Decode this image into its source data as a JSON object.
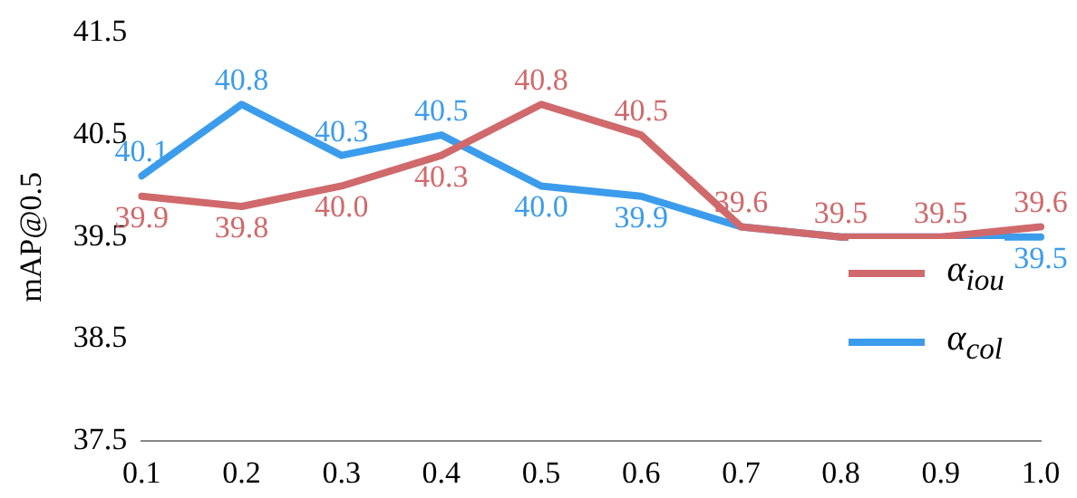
{
  "chart_data": {
    "type": "line",
    "ylabel": "mAP@0.5",
    "categories": [
      "0.1",
      "0.2",
      "0.3",
      "0.4",
      "0.5",
      "0.6",
      "0.7",
      "0.8",
      "0.9",
      "1.0"
    ],
    "ylim": [
      37.5,
      41.5
    ],
    "yticks": [
      37.5,
      38.5,
      39.5,
      40.5,
      41.5
    ],
    "grid": false,
    "legend": "right",
    "marker": "none",
    "line_style": "solid",
    "series": [
      {
        "name": "α$_{iou}$",
        "color": "#d0696b",
        "values": [
          39.9,
          39.8,
          40.0,
          40.3,
          40.8,
          40.5,
          39.6,
          39.5,
          39.5,
          39.6
        ],
        "value_labels": [
          "39.9",
          "39.8",
          "40.0",
          "40.3",
          "40.8",
          "40.5",
          "39.6",
          "39.5",
          "39.5",
          "39.6"
        ]
      },
      {
        "name": "α$_{col}$",
        "color": "#3c9cec",
        "values": [
          40.1,
          40.8,
          40.3,
          40.5,
          40.0,
          39.9,
          39.6,
          39.5,
          39.5,
          39.5
        ],
        "value_labels": [
          "40.1",
          "40.8",
          "40.3",
          "40.5",
          "40.0",
          "39.9",
          null,
          null,
          null,
          "39.5"
        ]
      }
    ]
  }
}
